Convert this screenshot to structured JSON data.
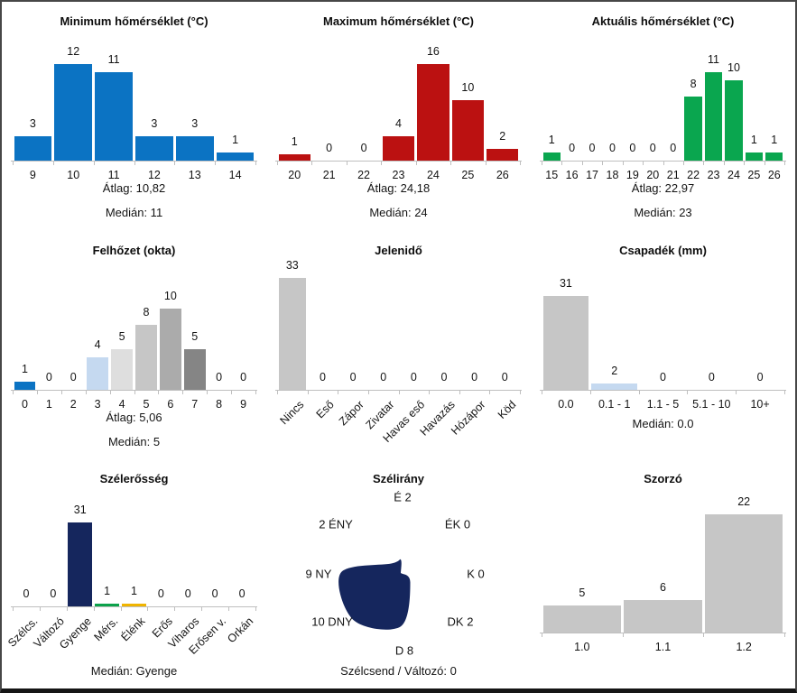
{
  "window": {
    "background": "#ffffff",
    "border_color": "#474747",
    "bottom_bar_color": "#151515"
  },
  "palette": {
    "blue": "#0b73c3",
    "red": "#bb1111",
    "green": "#0aa64f",
    "navy": "#15265d",
    "wind_green": "#0ca24b",
    "amber": "#f0b400",
    "gray_bar": "#c6c6c6",
    "light_blue": "#c5d9f0",
    "axis_gray": "#bfbfbf",
    "text": "#141414"
  },
  "chart_data": [
    {
      "id": "minimum-temperature",
      "type": "bar",
      "title": "Minimum hőmérséklet (°C)",
      "categories": [
        "9",
        "10",
        "11",
        "12",
        "13",
        "14"
      ],
      "values": [
        3,
        12,
        11,
        3,
        3,
        1
      ],
      "bar_color": "#0b73c3",
      "mean": "10,82",
      "median": "11",
      "stats_lines": [
        "Átlag: 10,82",
        "Medián: 11"
      ],
      "grid": false,
      "legend": false
    },
    {
      "id": "maximum-temperature",
      "type": "bar",
      "title": "Maximum hőmérséklet (°C)",
      "categories": [
        "20",
        "21",
        "22",
        "23",
        "24",
        "25",
        "26"
      ],
      "values": [
        1,
        0,
        0,
        4,
        16,
        10,
        2
      ],
      "bar_color": "#bb1111",
      "mean": "24,18",
      "median": "24",
      "stats_lines": [
        "Átlag: 24,18",
        "Medián: 24"
      ],
      "grid": false,
      "legend": false
    },
    {
      "id": "current-temperature",
      "type": "bar",
      "title": "Aktuális hőmérséklet (°C)",
      "categories": [
        "15",
        "16",
        "17",
        "18",
        "19",
        "20",
        "21",
        "22",
        "23",
        "24",
        "25",
        "26"
      ],
      "values": [
        1,
        0,
        0,
        0,
        0,
        0,
        0,
        8,
        11,
        10,
        1,
        1
      ],
      "bar_color": "#0aa64f",
      "mean": "22,97",
      "median": "23",
      "stats_lines": [
        "Átlag: 22,97",
        "Medián: 23"
      ],
      "grid": false,
      "legend": false
    },
    {
      "id": "cloud-cover",
      "type": "bar",
      "title": "Felhőzet (okta)",
      "categories": [
        "0",
        "1",
        "2",
        "3",
        "4",
        "5",
        "6",
        "7",
        "8",
        "9"
      ],
      "values": [
        1,
        0,
        0,
        4,
        5,
        8,
        10,
        5,
        0,
        0
      ],
      "bar_colors": [
        "#0b73c3",
        null,
        null,
        "#c5d9f0",
        "#dedede",
        "#c6c6c6",
        "#ababab",
        "#858585",
        null,
        null
      ],
      "mean": "5,06",
      "median": "5",
      "stats_lines": [
        "Átlag: 5,06",
        "Medián: 5"
      ],
      "grid": false,
      "legend": false
    },
    {
      "id": "present-weather",
      "type": "bar",
      "title": "Jelenidő",
      "categories": [
        "Nincs",
        "Eső",
        "Zápor",
        "Zivatar",
        "Havas eső",
        "Havazás",
        "Hózápor",
        "Köd"
      ],
      "values": [
        33,
        0,
        0,
        0,
        0,
        0,
        0,
        0
      ],
      "bar_color": "#c6c6c6",
      "rotated_labels": true,
      "stats_lines": [],
      "grid": false,
      "legend": false
    },
    {
      "id": "precipitation",
      "type": "bar",
      "title": "Csapadék (mm)",
      "categories": [
        "0.0",
        "0.1 - 1",
        "1.1 - 5",
        "5.1 - 10",
        "10+"
      ],
      "values": [
        31,
        2,
        0,
        0,
        0
      ],
      "bar_colors": [
        "#c6c6c6",
        "#c5d9f0",
        null,
        null,
        null
      ],
      "median": "0.0",
      "stats_lines": [
        "Medián: 0.0"
      ],
      "grid": false,
      "legend": false
    },
    {
      "id": "wind-strength",
      "type": "bar",
      "title": "Szélerősség",
      "categories": [
        "Szélcs.",
        "Változó",
        "Gyenge",
        "Mérs.",
        "Élénk",
        "Erős",
        "Viharos",
        "Erősen v.",
        "Orkán"
      ],
      "values": [
        0,
        0,
        31,
        1,
        1,
        0,
        0,
        0,
        0
      ],
      "bar_colors": [
        null,
        null,
        "#15265d",
        "#0ca24b",
        "#f0b400",
        null,
        null,
        null,
        null
      ],
      "rotated_labels": true,
      "median": "Gyenge",
      "stats_lines": [
        "Medián: Gyenge"
      ],
      "grid": false,
      "legend": false
    },
    {
      "id": "wind-direction",
      "type": "radar",
      "title": "Szélirány",
      "fill_color": "#15265d",
      "directions": [
        {
          "dir": "É",
          "value": 2,
          "display": "É 2"
        },
        {
          "dir": "ÉK",
          "value": 0,
          "display": "ÉK 0"
        },
        {
          "dir": "K",
          "value": 0,
          "display": "K 0"
        },
        {
          "dir": "DK",
          "value": 2,
          "display": "DK 2"
        },
        {
          "dir": "D",
          "value": 8,
          "display": "D 8"
        },
        {
          "dir": "DNY",
          "value": 10,
          "display": "10 DNY"
        },
        {
          "dir": "NY",
          "value": 9,
          "display": "9 NY"
        },
        {
          "dir": "ÉNY",
          "value": 2,
          "display": "2 ÉNY"
        }
      ],
      "stats_lines": [
        "Szélcsend / Változó: 0"
      ],
      "grid": false,
      "legend": false
    },
    {
      "id": "multiplier",
      "type": "bar",
      "title": "Szorzó",
      "categories": [
        "1.0",
        "1.1",
        "1.2"
      ],
      "values": [
        5,
        6,
        22
      ],
      "bar_color": "#c6c6c6",
      "stats_lines": [],
      "grid": false,
      "legend": false
    }
  ]
}
